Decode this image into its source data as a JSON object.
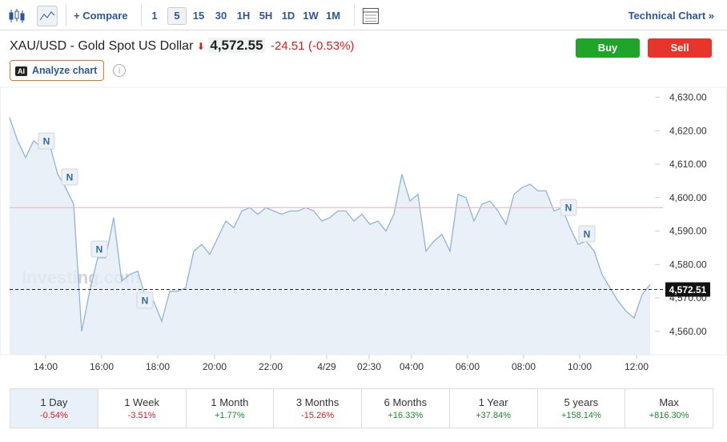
{
  "toolbar": {
    "compare": "Compare",
    "intervals": [
      "1",
      "5",
      "15",
      "30",
      "1H",
      "5H",
      "1D",
      "1W",
      "1M"
    ],
    "technical": "Technical Chart"
  },
  "header": {
    "title": "XAU/USD - Gold Spot US Dollar",
    "price": "4,572.55",
    "change": "-24.51",
    "change_pct": "(-0.53%)",
    "buy": "Buy",
    "sell": "Sell",
    "analyze": "Analyze chart"
  },
  "chart_data": {
    "type": "line",
    "watermark": "Investing.com",
    "news_marker": "N",
    "color": "#8fb3d9",
    "values": [
      4624,
      4617,
      4612,
      4617,
      4615,
      4616,
      4607,
      4603,
      4598,
      4560,
      4572,
      4582,
      4582,
      4594,
      4575,
      4577,
      4578,
      4570,
      4569,
      4563,
      4572,
      4572,
      4573,
      4584,
      4586,
      4583,
      4588,
      4593,
      4591,
      4596,
      4597,
      4595,
      4597,
      4596,
      4595,
      4596,
      4596,
      4597,
      4596,
      4593,
      4594,
      4596,
      4596,
      4593,
      4595,
      4592,
      4593,
      4590,
      4595,
      4607,
      4599,
      4601,
      4584,
      4587,
      4589,
      4584,
      4601,
      4600,
      4593,
      4598,
      4599,
      4596,
      4592,
      4601,
      4603,
      4604,
      4602,
      4602,
      4596,
      4597,
      4591,
      4586,
      4587,
      4584,
      4577,
      4573,
      4569,
      4566,
      4564,
      4571,
      4574
    ],
    "xlim": [
      0,
      80.6
    ],
    "xticks": [
      {
        "value": 4.5,
        "label": "14:00"
      },
      {
        "value": 11.5,
        "label": "16:00"
      },
      {
        "value": 18.5,
        "label": "18:00"
      },
      {
        "value": 25.6,
        "label": "20:00"
      },
      {
        "value": 32.6,
        "label": "22:00"
      },
      {
        "value": 39.6,
        "label": "4/29"
      },
      {
        "value": 44.9,
        "label": "02:30"
      },
      {
        "value": 50.2,
        "label": "04:00"
      },
      {
        "value": 57.2,
        "label": "06:00"
      },
      {
        "value": 64.2,
        "label": "08:00"
      },
      {
        "value": 71.2,
        "label": "10:00"
      },
      {
        "value": 78.3,
        "label": "12:00"
      }
    ],
    "ylim": [
      4553,
      4633
    ],
    "yticks": [
      {
        "value": 4560,
        "label": "4,560.00"
      },
      {
        "value": 4570,
        "label": "4,570.00"
      },
      {
        "value": 4580,
        "label": "4,580.00"
      },
      {
        "value": 4590,
        "label": "4,590.00"
      },
      {
        "value": 4600,
        "label": "4,600.00"
      },
      {
        "value": 4610,
        "label": "4,610.00"
      },
      {
        "value": 4620,
        "label": "4,620.00"
      },
      {
        "value": 4630,
        "label": "4,630.00"
      }
    ],
    "last_value": 4572.51,
    "last_value_label": "4,572.51",
    "prev_close": 4597
  },
  "periods": [
    {
      "name": "1 Day",
      "change": "-0.54%"
    },
    {
      "name": "1 Week",
      "change": "-3.51%"
    },
    {
      "name": "1 Month",
      "change": "+1.77%"
    },
    {
      "name": "3 Months",
      "change": "-15.26%"
    },
    {
      "name": "6 Months",
      "change": "+16.33%"
    },
    {
      "name": "1 Year",
      "change": "+37.84%"
    },
    {
      "name": "5 years",
      "change": "+158.14%"
    },
    {
      "name": "Max",
      "change": "+816.30%"
    }
  ]
}
